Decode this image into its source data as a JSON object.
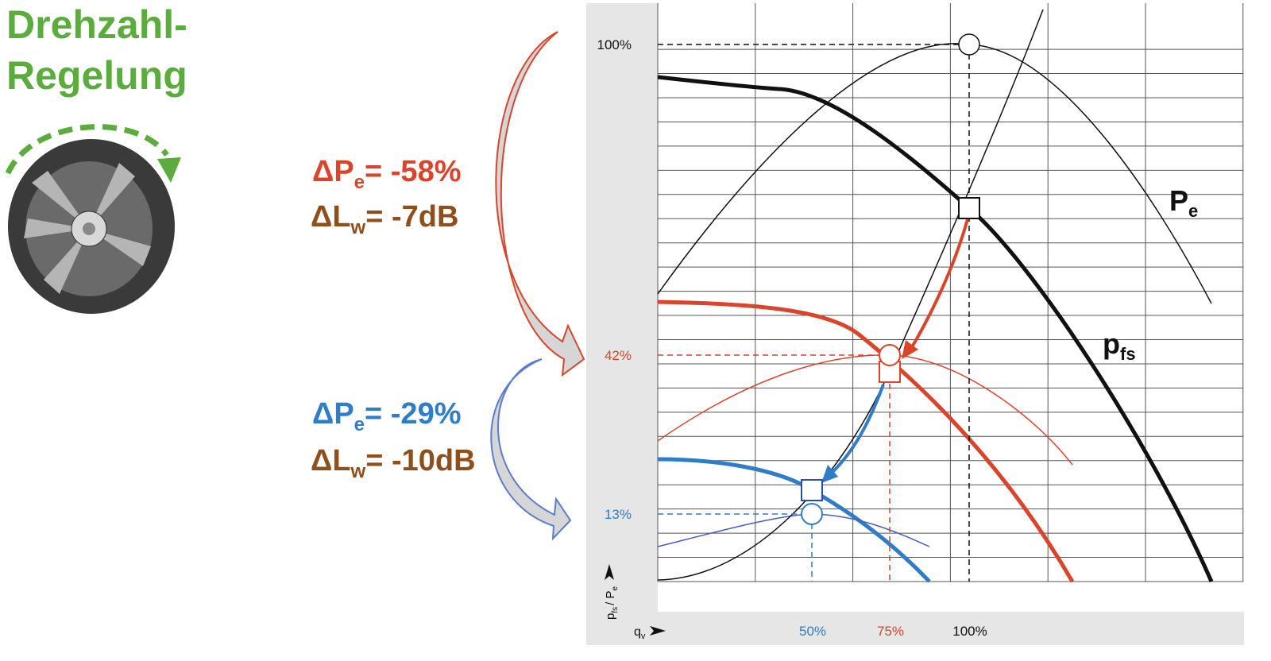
{
  "title": [
    "Drehzahl-",
    "Regelung"
  ],
  "deltas": [
    {
      "symbol": "ΔP",
      "sub": "e",
      "value": "= -58%"
    },
    {
      "symbol": "ΔL",
      "sub": "w",
      "value": "= -7dB"
    },
    {
      "symbol": "ΔP",
      "sub": "e",
      "value": "= -29%"
    },
    {
      "symbol": "ΔL",
      "sub": "w",
      "value": "= -10dB"
    }
  ],
  "y_labels": [
    "100%",
    "42%",
    "13%"
  ],
  "x_labels": [
    "50%",
    "75%",
    "100%"
  ],
  "curve_labels": [
    {
      "main": "P",
      "sub": "e"
    },
    {
      "main": "p",
      "sub": "fs"
    }
  ],
  "axis_labels": {
    "y": [
      "p",
      "fs",
      "/ P",
      "e"
    ],
    "x": [
      "q",
      "v"
    ]
  }
}
